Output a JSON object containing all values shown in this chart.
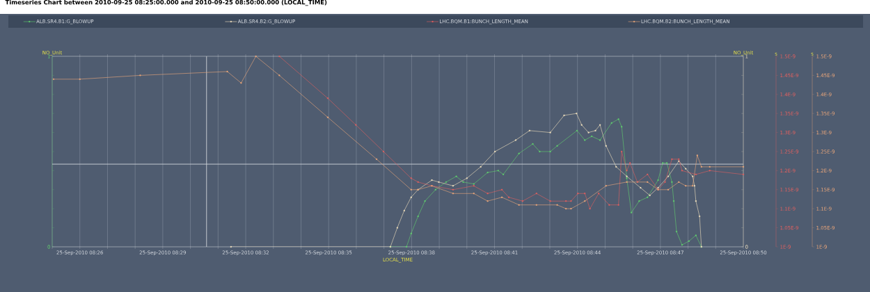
{
  "chart_data": [
    {
      "type": "line",
      "title": "Timeseries Chart between 2010-09-25 08:25:00.000 and 2010-09-25 08:50:00.000 (LOCAL_TIME)",
      "xlabel": "LOCAL_TIME",
      "ylabel": "NO_Unit",
      "y2label": "NO_Unit",
      "y3label": "s",
      "xlim": [
        "2010-09-25T08:25",
        "2010-09-25T08:50"
      ],
      "xticks": [
        {
          "value": "2010-09-25T08:25",
          "label": null
        },
        {
          "value": "2010-09-25T08:26",
          "label": "25-Sep-2010 08:26"
        },
        {
          "value": "2010-09-25T08:27",
          "label": null
        },
        {
          "value": "2010-09-25T08:28",
          "label": null
        },
        {
          "value": "2010-09-25T08:29",
          "label": "25-Sep-2010 08:29"
        },
        {
          "value": "2010-09-25T08:30",
          "label": null
        },
        {
          "value": "2010-09-25T08:31",
          "label": null
        },
        {
          "value": "2010-09-25T08:32",
          "label": "25-Sep-2010 08:32"
        },
        {
          "value": "2010-09-25T08:33",
          "label": null
        },
        {
          "value": "2010-09-25T08:34",
          "label": null
        },
        {
          "value": "2010-09-25T08:35",
          "label": "25-Sep-2010 08:35"
        },
        {
          "value": "2010-09-25T08:36",
          "label": null
        },
        {
          "value": "2010-09-25T08:37",
          "label": null
        },
        {
          "value": "2010-09-25T08:38",
          "label": "25-Sep-2010 08:38"
        },
        {
          "value": "2010-09-25T08:39",
          "label": null
        },
        {
          "value": "2010-09-25T08:40",
          "label": null
        },
        {
          "value": "2010-09-25T08:41",
          "label": "25-Sep-2010 08:41"
        },
        {
          "value": "2010-09-25T08:42",
          "label": null
        },
        {
          "value": "2010-09-25T08:43",
          "label": null
        },
        {
          "value": "2010-09-25T08:44",
          "label": "25-Sep-2010 08:44"
        },
        {
          "value": "2010-09-25T08:45",
          "label": null
        },
        {
          "value": "2010-09-25T08:46",
          "label": null
        },
        {
          "value": "2010-09-25T08:47",
          "label": "25-Sep-2010 08:47"
        },
        {
          "value": "2010-09-25T08:48",
          "label": null
        },
        {
          "value": "2010-09-25T08:49",
          "label": null
        },
        {
          "value": "2010-09-25T08:50",
          "label": "25-Sep-2010 08:50"
        }
      ],
      "ylim": [
        0,
        1
      ],
      "yticks": [
        0,
        {
          "value": 0.1,
          "label": null
        },
        {
          "value": 0.2,
          "label": null
        },
        {
          "value": 0.3,
          "label": null
        },
        {
          "value": 0.4,
          "label": null
        },
        {
          "value": 0.5,
          "label": null
        },
        {
          "value": 0.6,
          "label": null
        },
        {
          "value": 0.7,
          "label": null
        },
        {
          "value": 0.8,
          "label": null
        },
        {
          "value": 0.9,
          "label": null
        },
        1
      ],
      "y2lim": [
        0,
        1
      ],
      "y2ticks": [
        0,
        {
          "value": 0.1,
          "label": null
        },
        {
          "value": 0.2,
          "label": null
        },
        {
          "value": 0.3,
          "label": null
        },
        {
          "value": 0.4,
          "label": null
        },
        {
          "value": 0.5,
          "label": null
        },
        {
          "value": 0.6,
          "label": null
        },
        {
          "value": 0.7,
          "label": null
        },
        {
          "value": 0.8,
          "label": null
        },
        {
          "value": 0.9,
          "label": null
        },
        1
      ],
      "y3lim": [
        1e-09,
        1.5e-09
      ],
      "y3ticks": [
        {
          "value": 1e-09,
          "label": "1E-9"
        },
        {
          "value": 1.05e-09,
          "label": "1.05E-9"
        },
        {
          "value": 1.1e-09,
          "label": "1.1E-9"
        },
        {
          "value": 1.15e-09,
          "label": "1.15E-9"
        },
        {
          "value": 1.2e-09,
          "label": "1.2E-9"
        },
        {
          "value": 1.25e-09,
          "label": "1.25E-9"
        },
        {
          "value": 1.3e-09,
          "label": "1.3E-9"
        },
        {
          "value": 1.35e-09,
          "label": "1.35E-9"
        },
        {
          "value": 1.4e-09,
          "label": "1.4E-9"
        },
        {
          "value": 1.45e-09,
          "label": "1.45E-9"
        },
        {
          "value": 1.5e-09,
          "label": "1.5E-9"
        }
      ],
      "grid": "x",
      "legend": "top",
      "marker": "square",
      "line_style": "solid",
      "ref_lines": [
        {
          "axis": "y",
          "value": 0.434,
          "color": "#d0d4da"
        },
        {
          "axis": "x",
          "value": "2010-09-25T08:30:35",
          "color": "#d0d4da"
        }
      ],
      "series": [
        {
          "name": "ALB.SR4.B1:G_BLOWUP",
          "color": "#62d26f",
          "axis": "y",
          "x": [
            "2010-09-25T08:37:14",
            "2010-09-25T08:37:49",
            "2010-09-25T08:37:59",
            "2010-09-25T08:38:14",
            "2010-09-25T08:38:29",
            "2010-09-25T08:38:52",
            "2010-09-25T08:39:15",
            "2010-09-25T08:39:37",
            "2010-09-25T08:39:52",
            "2010-09-25T08:40:15",
            "2010-09-25T08:40:45",
            "2010-09-25T08:41:08",
            "2010-09-25T08:41:19",
            "2010-09-25T08:41:53",
            "2010-09-25T08:42:23",
            "2010-09-25T08:42:38",
            "2010-09-25T08:43:01",
            "2010-09-25T08:43:16",
            "2010-09-25T08:43:59",
            "2010-09-25T08:44:16",
            "2010-09-25T08:44:31",
            "2010-09-25T08:44:49",
            "2010-09-25T08:45:14",
            "2010-09-25T08:45:29",
            "2010-09-25T08:45:36",
            "2010-09-25T08:45:47",
            "2010-09-25T08:45:57",
            "2010-09-25T08:46:14",
            "2010-09-25T08:46:32",
            "2010-09-25T08:46:55",
            "2010-09-25T08:47:05",
            "2010-09-25T08:47:14",
            "2010-09-25T08:47:25",
            "2010-09-25T08:47:29",
            "2010-09-25T08:47:35",
            "2010-09-25T08:47:47",
            "2010-09-25T08:48:02",
            "2010-09-25T08:48:17",
            "2010-09-25T08:48:29"
          ],
          "values": [
            0,
            0,
            0.07,
            0.16,
            0.24,
            0.3,
            0.34,
            0.37,
            0.34,
            0.33,
            0.39,
            0.4,
            0.38,
            0.49,
            0.54,
            0.5,
            0.5,
            0.53,
            0.61,
            0.56,
            0.58,
            0.56,
            0.65,
            0.67,
            0.63,
            0.36,
            0.18,
            0.24,
            0.26,
            0.35,
            0.44,
            0.44,
            0.34,
            0.24,
            0.08,
            0.01,
            0.03,
            0.06,
            0
          ]
        },
        {
          "name": "ALB.SR4.B2:G_BLOWUP",
          "color": "#f3e3c0",
          "axis": "y2",
          "x": [
            "2010-09-25T08:31:28",
            "2010-09-25T08:37:14",
            "2010-09-25T08:37:29",
            "2010-09-25T08:37:44",
            "2010-09-25T08:37:59",
            "2010-09-25T08:38:14",
            "2010-09-25T08:38:44",
            "2010-09-25T08:38:59",
            "2010-09-25T08:39:30",
            "2010-09-25T08:40:00",
            "2010-09-25T08:40:30",
            "2010-09-25T08:41:01",
            "2010-09-25T08:41:46",
            "2010-09-25T08:42:16",
            "2010-09-25T08:43:01",
            "2010-09-25T08:43:31",
            "2010-09-25T08:43:58",
            "2010-09-25T08:44:09",
            "2010-09-25T08:44:24",
            "2010-09-25T08:44:39",
            "2010-09-25T08:44:49",
            "2010-09-25T08:45:02",
            "2010-09-25T08:45:24",
            "2010-09-25T08:45:47",
            "2010-09-25T08:46:17",
            "2010-09-25T08:46:37",
            "2010-09-25T08:46:55",
            "2010-09-25T08:47:17",
            "2010-09-25T08:47:40",
            "2010-09-25T08:47:55",
            "2010-09-25T08:48:10",
            "2010-09-25T08:48:14",
            "2010-09-25T08:48:17",
            "2010-09-25T08:48:25",
            "2010-09-25T08:48:29"
          ],
          "values": [
            0,
            0,
            0.1,
            0.19,
            0.26,
            0.3,
            0.35,
            0.34,
            0.32,
            0.36,
            0.42,
            0.5,
            0.56,
            0.61,
            0.6,
            0.69,
            0.7,
            0.64,
            0.6,
            0.61,
            0.64,
            0.53,
            0.42,
            0.37,
            0.31,
            0.27,
            0.31,
            0.37,
            0.45,
            0.41,
            0.37,
            0.32,
            0.24,
            0.16,
            0
          ]
        },
        {
          "name": "LHC.BQM.B1:BUNCH_LENGTH_MEAN",
          "color": "#e3605f",
          "axis": "y3",
          "x": [
            "2010-09-25T08:33:13",
            "2010-09-25T08:34:58",
            "2010-09-25T08:35:59",
            "2010-09-25T08:36:59",
            "2010-09-25T08:37:59",
            "2010-09-25T08:38:14",
            "2010-09-25T08:38:44",
            "2010-09-25T08:39:30",
            "2010-09-25T08:40:15",
            "2010-09-25T08:40:45",
            "2010-09-25T08:41:16",
            "2010-09-25T08:41:31",
            "2010-09-25T08:42:01",
            "2010-09-25T08:42:31",
            "2010-09-25T08:43:01",
            "2010-09-25T08:43:35",
            "2010-09-25T08:43:46",
            "2010-09-25T08:44:01",
            "2010-09-25T08:44:16",
            "2010-09-25T08:44:27",
            "2010-09-25T08:44:46",
            "2010-09-25T08:45:09",
            "2010-09-25T08:45:29",
            "2010-09-25T08:45:36",
            "2010-09-25T08:45:47",
            "2010-09-25T08:45:54",
            "2010-09-25T08:46:10",
            "2010-09-25T08:46:32",
            "2010-09-25T08:46:55",
            "2010-09-25T08:47:10",
            "2010-09-25T08:47:25",
            "2010-09-25T08:47:40",
            "2010-09-25T08:47:47",
            "2010-09-25T08:48:17",
            "2010-09-25T08:48:47",
            "2010-09-25T08:50:00"
          ],
          "values": [
            1.5e-09,
            1.39e-09,
            1.32e-09,
            1.25e-09,
            1.18e-09,
            1.17e-09,
            1.16e-09,
            1.15e-09,
            1.16e-09,
            1.14e-09,
            1.15e-09,
            1.13e-09,
            1.12e-09,
            1.14e-09,
            1.12e-09,
            1.12e-09,
            1.12e-09,
            1.14e-09,
            1.14e-09,
            1.1e-09,
            1.14e-09,
            1.11e-09,
            1.11e-09,
            1.25e-09,
            1.2e-09,
            1.22e-09,
            1.17e-09,
            1.19e-09,
            1.15e-09,
            1.17e-09,
            1.23e-09,
            1.23e-09,
            1.2e-09,
            1.19e-09,
            1.2e-09,
            1.19e-09
          ]
        }
      ]
    },
    {
      "type": "line",
      "ylabel": "s",
      "tick_labels": "y",
      "xlim": [
        "2010-09-25T08:25",
        "2010-09-25T08:50"
      ],
      "ylim": [
        1e-09,
        1.5e-09
      ],
      "yticks": [
        {
          "value": 1e-09,
          "label": "1E-9"
        },
        {
          "value": 1.05e-09,
          "label": "1.05E-9"
        },
        {
          "value": 1.1e-09,
          "label": "1.1E-9"
        },
        {
          "value": 1.15e-09,
          "label": "1.15E-9"
        },
        {
          "value": 1.2e-09,
          "label": "1.2E-9"
        },
        {
          "value": 1.25e-09,
          "label": "1.25E-9"
        },
        {
          "value": 1.3e-09,
          "label": "1.3E-9"
        },
        {
          "value": 1.35e-09,
          "label": "1.35E-9"
        },
        {
          "value": 1.4e-09,
          "label": "1.4E-9"
        },
        {
          "value": 1.45e-09,
          "label": "1.45E-9"
        },
        {
          "value": 1.5e-09,
          "label": "1.5E-9"
        }
      ],
      "marker": "square",
      "line_style": "solid",
      "series": [
        {
          "name": "LHC.BQM.B2:BUNCH_LENGTH_MEAN",
          "color": "#eda77a",
          "x": [
            "2010-09-25T08:25:03",
            "2010-09-25T08:26:00",
            "2010-09-25T08:28:11",
            "2010-09-25T08:31:20",
            "2010-09-25T08:31:50",
            "2010-09-25T08:32:22",
            "2010-09-25T08:33:13",
            "2010-09-25T08:34:58",
            "2010-09-25T08:36:44",
            "2010-09-25T08:37:59",
            "2010-09-25T08:38:14",
            "2010-09-25T08:38:44",
            "2010-09-25T08:39:30",
            "2010-09-25T08:40:15",
            "2010-09-25T08:40:45",
            "2010-09-25T08:41:16",
            "2010-09-25T08:41:53",
            "2010-09-25T08:42:31",
            "2010-09-25T08:43:16",
            "2010-09-25T08:43:35",
            "2010-09-25T08:43:46",
            "2010-09-25T08:44:16",
            "2010-09-25T08:45:02",
            "2010-09-25T08:45:47",
            "2010-09-25T08:46:32",
            "2010-09-25T08:46:55",
            "2010-09-25T08:47:17",
            "2010-09-25T08:47:40",
            "2010-09-25T08:47:55",
            "2010-09-25T08:48:10",
            "2010-09-25T08:48:20",
            "2010-09-25T08:48:29",
            "2010-09-25T08:48:47",
            "2010-09-25T08:50:00"
          ],
          "values": [
            1.44e-09,
            1.44e-09,
            1.45e-09,
            1.46e-09,
            1.43e-09,
            1.5e-09,
            1.45e-09,
            1.34e-09,
            1.23e-09,
            1.15e-09,
            1.15e-09,
            1.16e-09,
            1.14e-09,
            1.14e-09,
            1.12e-09,
            1.13e-09,
            1.11e-09,
            1.11e-09,
            1.11e-09,
            1.1e-09,
            1.1e-09,
            1.12e-09,
            1.16e-09,
            1.17e-09,
            1.17e-09,
            1.15e-09,
            1.15e-09,
            1.17e-09,
            1.16e-09,
            1.16e-09,
            1.24e-09,
            1.21e-09,
            1.21e-09,
            1.21e-09
          ]
        }
      ]
    }
  ]
}
